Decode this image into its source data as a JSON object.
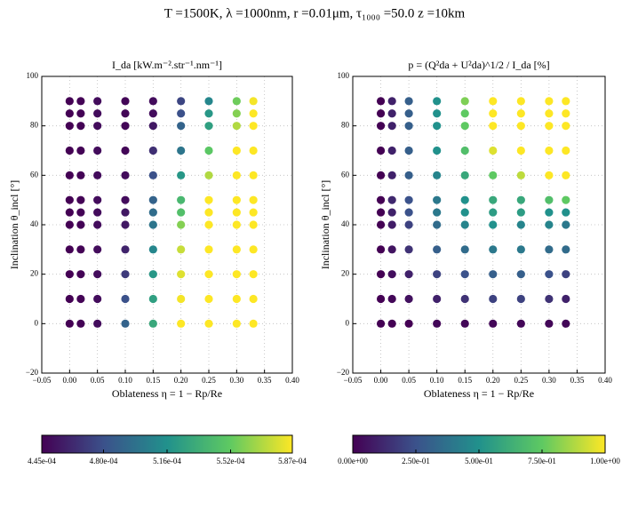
{
  "title": "T =1500K, λ =1000nm, r =0.01μm, τ₁₀₀₀ =50.0 z =10km",
  "chart_data": [
    {
      "type": "scatter",
      "title": "I_da [kW.m⁻².str⁻¹.nm⁻¹]",
      "x_label": "Oblateness η = 1 − Rp/Re",
      "y_label": "Inclination θ_incl [°]",
      "xlim": [
        -0.05,
        0.4
      ],
      "ylim": [
        -20,
        100
      ],
      "xticks": [
        {
          "value": -0.05,
          "label": "−0.05"
        },
        {
          "value": 0,
          "label": "0.00"
        },
        {
          "value": 0.05,
          "label": "0.05"
        },
        {
          "value": 0.1,
          "label": "0.10"
        },
        {
          "value": 0.15,
          "label": "0.15"
        },
        {
          "value": 0.2,
          "label": "0.20"
        },
        {
          "value": 0.25,
          "label": "0.25"
        },
        {
          "value": 0.3,
          "label": "0.30"
        },
        {
          "value": 0.35,
          "label": "0.35"
        },
        {
          "value": 0.4,
          "label": "0.40"
        }
      ],
      "yticks": [
        {
          "value": -20,
          "label": "−20"
        },
        0,
        20,
        40,
        60,
        80,
        100
      ],
      "grid": true,
      "colormap": "viridis",
      "clim": [
        0.000445,
        0.000587
      ],
      "cticks": [
        {
          "value": 0.000445,
          "label": "4.45e-04"
        },
        {
          "value": 0.00048,
          "label": "4.80e-04"
        },
        {
          "value": 0.000516,
          "label": "5.16e-04"
        },
        {
          "value": 0.000552,
          "label": "5.52e-04"
        },
        {
          "value": 0.000587,
          "label": "5.87e-04"
        }
      ],
      "x": [
        0,
        0,
        0,
        0,
        0,
        0,
        0,
        0,
        0,
        0,
        0,
        0,
        0.02,
        0.02,
        0.02,
        0.02,
        0.02,
        0.02,
        0.02,
        0.02,
        0.02,
        0.02,
        0.02,
        0.02,
        0.05,
        0.05,
        0.05,
        0.05,
        0.05,
        0.05,
        0.05,
        0.05,
        0.05,
        0.05,
        0.05,
        0.05,
        0.1,
        0.1,
        0.1,
        0.1,
        0.1,
        0.1,
        0.1,
        0.1,
        0.1,
        0.1,
        0.1,
        0.1,
        0.15,
        0.15,
        0.15,
        0.15,
        0.15,
        0.15,
        0.15,
        0.15,
        0.15,
        0.15,
        0.15,
        0.15,
        0.2,
        0.2,
        0.2,
        0.2,
        0.2,
        0.2,
        0.2,
        0.2,
        0.2,
        0.2,
        0.2,
        0.2,
        0.25,
        0.25,
        0.25,
        0.25,
        0.25,
        0.25,
        0.25,
        0.25,
        0.25,
        0.25,
        0.25,
        0.25,
        0.3,
        0.3,
        0.3,
        0.3,
        0.3,
        0.3,
        0.3,
        0.3,
        0.3,
        0.3,
        0.3,
        0.3,
        0.33,
        0.33,
        0.33,
        0.33,
        0.33,
        0.33,
        0.33,
        0.33,
        0.33,
        0.33,
        0.33,
        0.33
      ],
      "y": [
        0,
        10,
        20,
        30,
        40,
        45,
        50,
        60,
        70,
        80,
        85,
        90,
        0,
        10,
        20,
        30,
        40,
        45,
        50,
        60,
        70,
        80,
        85,
        90,
        0,
        10,
        20,
        30,
        40,
        45,
        50,
        60,
        70,
        80,
        85,
        90,
        0,
        10,
        20,
        30,
        40,
        45,
        50,
        60,
        70,
        80,
        85,
        90,
        0,
        10,
        20,
        30,
        40,
        45,
        50,
        60,
        70,
        80,
        85,
        90,
        0,
        10,
        20,
        30,
        40,
        45,
        50,
        60,
        70,
        80,
        85,
        90,
        0,
        10,
        20,
        30,
        40,
        45,
        50,
        60,
        70,
        80,
        85,
        90,
        0,
        10,
        20,
        30,
        40,
        45,
        50,
        60,
        70,
        80,
        85,
        90,
        0,
        10,
        20,
        30,
        40,
        45,
        50,
        60,
        70,
        80,
        85,
        90
      ],
      "values": [
        0.000445,
        0.000445,
        0.000445,
        0.000445,
        0.000445,
        0.000445,
        0.000445,
        0.000445,
        0.000445,
        0.000445,
        0.000445,
        0.000445,
        0.000446,
        0.000446,
        0.000446,
        0.000446,
        0.000446,
        0.000446,
        0.000446,
        0.000446,
        0.000446,
        0.000446,
        0.000446,
        0.000446,
        0.00045,
        0.00045,
        0.00045,
        0.00045,
        0.00045,
        0.00045,
        0.00045,
        0.00045,
        0.00045,
        0.00045,
        0.00045,
        0.00045,
        0.00049,
        0.00048,
        0.00047,
        0.00046,
        0.000455,
        0.000455,
        0.00045,
        0.00045,
        0.000447,
        0.000447,
        0.000447,
        0.000447,
        0.00053,
        0.000525,
        0.00052,
        0.00051,
        0.0005,
        0.000495,
        0.00049,
        0.00048,
        0.000465,
        0.000455,
        0.00045,
        0.00045,
        0.000587,
        0.000585,
        0.00058,
        0.000575,
        0.00056,
        0.000545,
        0.00054,
        0.00052,
        0.0005,
        0.00049,
        0.00048,
        0.000475,
        0.000587,
        0.000587,
        0.000587,
        0.000587,
        0.000587,
        0.000587,
        0.000587,
        0.00057,
        0.00055,
        0.000525,
        0.00052,
        0.00051,
        0.000587,
        0.000587,
        0.000587,
        0.000587,
        0.000587,
        0.000587,
        0.000587,
        0.000587,
        0.000587,
        0.00057,
        0.00056,
        0.000555,
        0.000587,
        0.000587,
        0.000587,
        0.000587,
        0.000587,
        0.000587,
        0.000587,
        0.000587,
        0.000587,
        0.000587,
        0.000587,
        0.000585
      ]
    },
    {
      "type": "scatter",
      "title": "p = (Q²da + U²da)^1/2 / I_da [%]",
      "x_label": "Oblateness η = 1 − Rp/Re",
      "y_label": "Inclination θ_incl [°]",
      "xlim": [
        -0.05,
        0.4
      ],
      "ylim": [
        -20,
        100
      ],
      "xticks": [
        {
          "value": -0.05,
          "label": "−0.05"
        },
        {
          "value": 0,
          "label": "0.00"
        },
        {
          "value": 0.05,
          "label": "0.05"
        },
        {
          "value": 0.1,
          "label": "0.10"
        },
        {
          "value": 0.15,
          "label": "0.15"
        },
        {
          "value": 0.2,
          "label": "0.20"
        },
        {
          "value": 0.25,
          "label": "0.25"
        },
        {
          "value": 0.3,
          "label": "0.30"
        },
        {
          "value": 0.35,
          "label": "0.35"
        },
        {
          "value": 0.4,
          "label": "0.40"
        }
      ],
      "yticks": [
        {
          "value": -20,
          "label": "−20"
        },
        0,
        20,
        40,
        60,
        80,
        100
      ],
      "grid": true,
      "colormap": "viridis",
      "clim": [
        0,
        1
      ],
      "cticks": [
        {
          "value": 0,
          "label": "0.00e+00"
        },
        {
          "value": 0.25,
          "label": "2.50e-01"
        },
        {
          "value": 0.5,
          "label": "5.00e-01"
        },
        {
          "value": 0.75,
          "label": "7.50e-01"
        },
        {
          "value": 1,
          "label": "1.00e+00"
        }
      ],
      "x": [
        0,
        0,
        0,
        0,
        0,
        0,
        0,
        0,
        0,
        0,
        0,
        0,
        0.02,
        0.02,
        0.02,
        0.02,
        0.02,
        0.02,
        0.02,
        0.02,
        0.02,
        0.02,
        0.02,
        0.02,
        0.05,
        0.05,
        0.05,
        0.05,
        0.05,
        0.05,
        0.05,
        0.05,
        0.05,
        0.05,
        0.05,
        0.05,
        0.1,
        0.1,
        0.1,
        0.1,
        0.1,
        0.1,
        0.1,
        0.1,
        0.1,
        0.1,
        0.1,
        0.1,
        0.15,
        0.15,
        0.15,
        0.15,
        0.15,
        0.15,
        0.15,
        0.15,
        0.15,
        0.15,
        0.15,
        0.15,
        0.2,
        0.2,
        0.2,
        0.2,
        0.2,
        0.2,
        0.2,
        0.2,
        0.2,
        0.2,
        0.2,
        0.2,
        0.25,
        0.25,
        0.25,
        0.25,
        0.25,
        0.25,
        0.25,
        0.25,
        0.25,
        0.25,
        0.25,
        0.25,
        0.3,
        0.3,
        0.3,
        0.3,
        0.3,
        0.3,
        0.3,
        0.3,
        0.3,
        0.3,
        0.3,
        0.3,
        0.33,
        0.33,
        0.33,
        0.33,
        0.33,
        0.33,
        0.33,
        0.33,
        0.33,
        0.33,
        0.33,
        0.33
      ],
      "y": [
        0,
        10,
        20,
        30,
        40,
        45,
        50,
        60,
        70,
        80,
        85,
        90,
        0,
        10,
        20,
        30,
        40,
        45,
        50,
        60,
        70,
        80,
        85,
        90,
        0,
        10,
        20,
        30,
        40,
        45,
        50,
        60,
        70,
        80,
        85,
        90,
        0,
        10,
        20,
        30,
        40,
        45,
        50,
        60,
        70,
        80,
        85,
        90,
        0,
        10,
        20,
        30,
        40,
        45,
        50,
        60,
        70,
        80,
        85,
        90,
        0,
        10,
        20,
        30,
        40,
        45,
        50,
        60,
        70,
        80,
        85,
        90,
        0,
        10,
        20,
        30,
        40,
        45,
        50,
        60,
        70,
        80,
        85,
        90,
        0,
        10,
        20,
        30,
        40,
        45,
        50,
        60,
        70,
        80,
        85,
        90,
        0,
        10,
        20,
        30,
        40,
        45,
        50,
        60,
        70,
        80,
        85,
        90
      ],
      "values": [
        0,
        0,
        0,
        0,
        0,
        0,
        0,
        0,
        0,
        0,
        0,
        0,
        0,
        0.02,
        0.04,
        0.06,
        0.08,
        0.1,
        0.12,
        0.1,
        0.1,
        0.1,
        0.1,
        0.1,
        0,
        0.05,
        0.1,
        0.15,
        0.2,
        0.25,
        0.25,
        0.3,
        0.3,
        0.3,
        0.3,
        0.3,
        0.02,
        0.1,
        0.2,
        0.3,
        0.35,
        0.4,
        0.4,
        0.45,
        0.5,
        0.5,
        0.5,
        0.5,
        0.02,
        0.15,
        0.25,
        0.35,
        0.45,
        0.5,
        0.5,
        0.6,
        0.7,
        0.75,
        0.75,
        0.8,
        0.02,
        0.2,
        0.3,
        0.4,
        0.5,
        0.55,
        0.6,
        0.75,
        0.95,
        1,
        1,
        1,
        0.02,
        0.2,
        0.3,
        0.4,
        0.45,
        0.55,
        0.6,
        0.9,
        1,
        1,
        1,
        1,
        0.02,
        0.15,
        0.25,
        0.35,
        0.45,
        0.5,
        0.7,
        1,
        1,
        1,
        1,
        1,
        0.02,
        0.1,
        0.2,
        0.35,
        0.4,
        0.5,
        0.75,
        1,
        1,
        1,
        1,
        1
      ]
    }
  ]
}
